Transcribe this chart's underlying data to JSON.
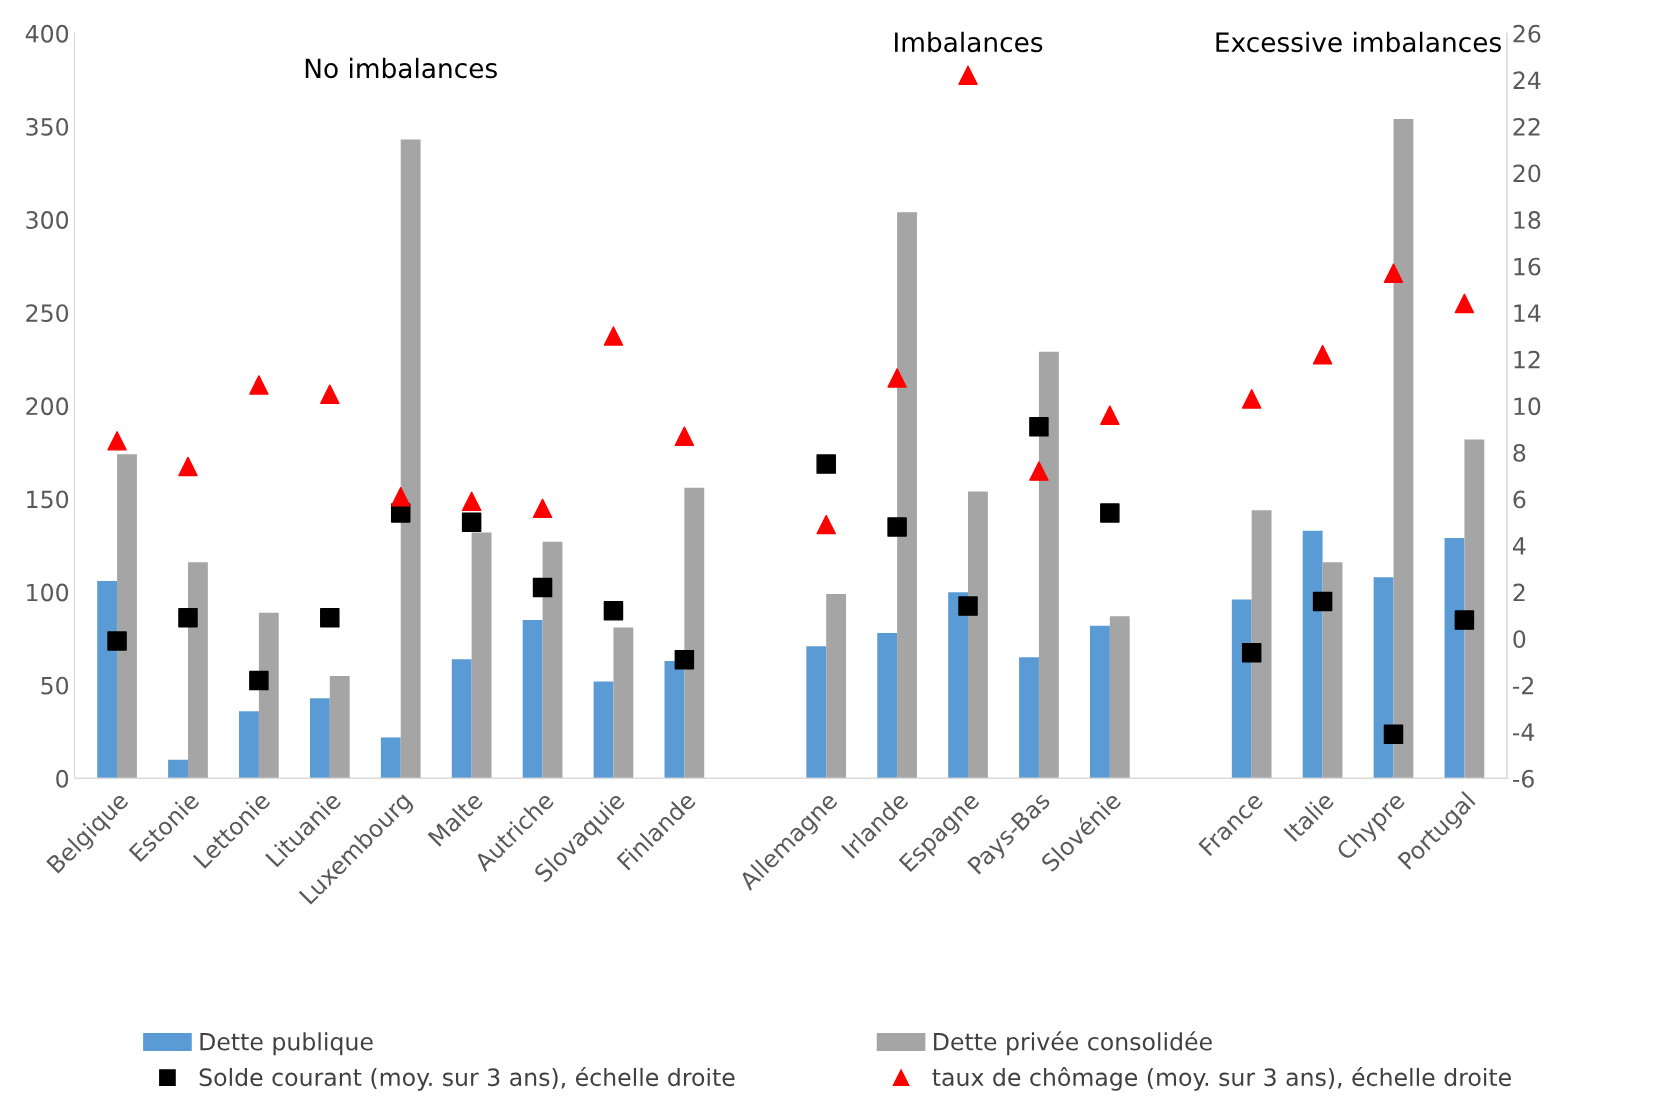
{
  "chart_data": {
    "type": "bar",
    "categories": [
      "Belgique",
      "Estonie",
      "Lettonie",
      "Lituanie",
      "Luxembourg",
      "Malte",
      "Autriche",
      "Slovaquie",
      "Finlande",
      null,
      "Allemagne",
      "Irlande",
      "Espagne",
      "Pays-Bas",
      "Slovénie",
      null,
      "France",
      "Italie",
      "Chypre",
      "Portugal"
    ],
    "series": [
      {
        "name": "Dette publique",
        "color": "#5b9bd5",
        "values": [
          106,
          10,
          36,
          43,
          22,
          64,
          85,
          52,
          63,
          null,
          71,
          78,
          100,
          65,
          82,
          null,
          96,
          133,
          108,
          129
        ]
      },
      {
        "name": "Dette privée consolidée",
        "color": "#a5a5a5",
        "values": [
          174,
          116,
          89,
          55,
          343,
          132,
          127,
          81,
          156,
          null,
          99,
          304,
          154,
          229,
          87,
          null,
          144,
          116,
          354,
          182
        ]
      },
      {
        "name": "Solde courant (moy. sur 3 ans), échelle droite",
        "type": "scatter",
        "axis": "y2",
        "marker": "square",
        "color": "#000000",
        "values": [
          -0.1,
          0.9,
          -1.8,
          0.9,
          5.4,
          5.0,
          2.2,
          1.2,
          -0.9,
          null,
          7.5,
          4.8,
          1.4,
          9.1,
          5.4,
          null,
          -0.6,
          1.6,
          -4.1,
          0.8
        ]
      },
      {
        "name": "taux de chômage (moy. sur 3 ans), échelle droite",
        "type": "scatter",
        "axis": "y2",
        "marker": "triangle",
        "color": "#ff0000",
        "values": [
          8.5,
          7.4,
          10.9,
          10.5,
          6.1,
          5.9,
          5.6,
          13.0,
          8.7,
          null,
          4.9,
          11.2,
          24.2,
          7.2,
          9.6,
          null,
          10.3,
          12.2,
          15.7,
          14.4
        ]
      }
    ],
    "ylim": [
      0,
      400
    ],
    "yticks": [
      0,
      50,
      100,
      150,
      200,
      250,
      300,
      350,
      400
    ],
    "y2lim": [
      -6,
      26
    ],
    "y2ticks": [
      -6,
      -4,
      -2,
      0,
      2,
      4,
      6,
      8,
      10,
      12,
      14,
      16,
      18,
      20,
      22,
      24,
      26
    ],
    "annotations": [
      "No imbalances",
      "Imbalances",
      "Excessive imbalances"
    ],
    "grid": false,
    "legend": "bottom"
  }
}
